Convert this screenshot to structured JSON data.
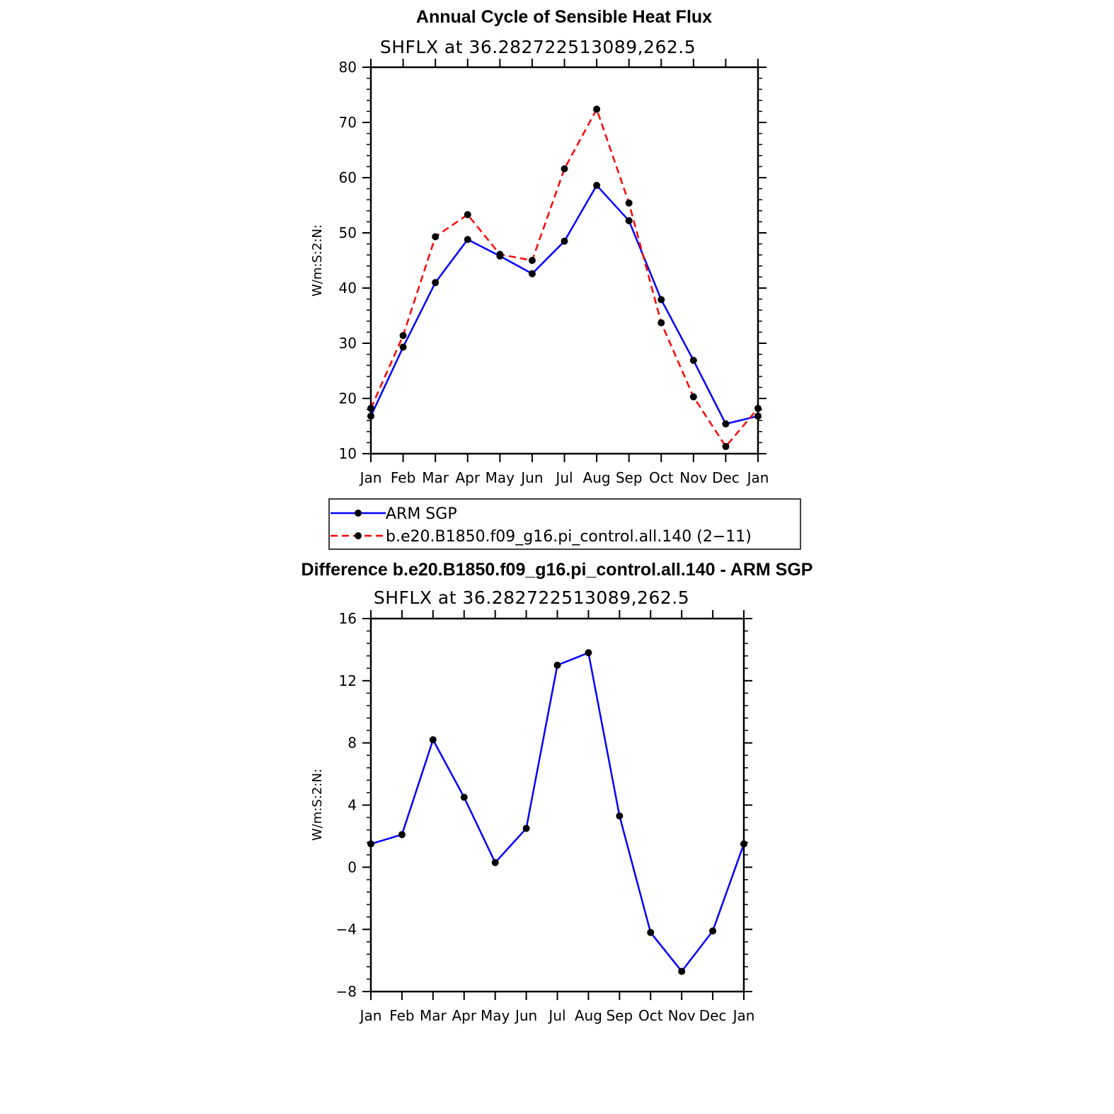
{
  "chart_data": [
    {
      "type": "line",
      "title": "Annual Cycle of Sensible Heat Flux",
      "subtitle": "SHFLX at 36.282722513089,262.5",
      "ylabel": "W/m:S:2:N:",
      "xlabel": "",
      "categories": [
        "Jan",
        "Feb",
        "Mar",
        "Apr",
        "May",
        "Jun",
        "Jul",
        "Aug",
        "Sep",
        "Oct",
        "Nov",
        "Dec",
        "Jan"
      ],
      "ylim": [
        10,
        80
      ],
      "yticks": [
        "10",
        "20",
        "30",
        "40",
        "50",
        "60",
        "70",
        "80"
      ],
      "series": [
        {
          "name": "ARM SGP",
          "color": "#0000ff",
          "dash": "solid",
          "values": [
            16.8,
            29.3,
            41.0,
            48.8,
            45.8,
            42.6,
            48.5,
            58.6,
            52.2,
            37.9,
            26.9,
            15.4,
            16.8
          ]
        },
        {
          "name": "b.e20.B1850.f09_g16.pi_control.all.140 (2−11)",
          "color": "#ff0000",
          "dash": "dashed",
          "values": [
            18.2,
            31.4,
            49.3,
            53.3,
            46.1,
            45.0,
            61.6,
            72.4,
            55.4,
            33.7,
            20.3,
            11.3,
            18.2
          ]
        }
      ],
      "legend": "below"
    },
    {
      "type": "line",
      "title": "Difference b.e20.B1850.f09_g16.pi_control.all.140 - ARM SGP",
      "subtitle": "SHFLX at 36.282722513089,262.5",
      "ylabel": "W/m:S:2:N:",
      "xlabel": "",
      "categories": [
        "Jan",
        "Feb",
        "Mar",
        "Apr",
        "May",
        "Jun",
        "Jul",
        "Aug",
        "Sep",
        "Oct",
        "Nov",
        "Dec",
        "Jan"
      ],
      "ylim": [
        -8,
        16
      ],
      "yticks": [
        "−8",
        "−4",
        "0",
        "4",
        "8",
        "12",
        "16"
      ],
      "series": [
        {
          "name": "Difference",
          "color": "#0000ff",
          "dash": "solid",
          "values": [
            1.5,
            2.1,
            8.2,
            4.5,
            0.3,
            2.5,
            13.0,
            13.8,
            3.3,
            -4.2,
            -6.7,
            -4.1,
            1.5
          ]
        }
      ]
    }
  ]
}
